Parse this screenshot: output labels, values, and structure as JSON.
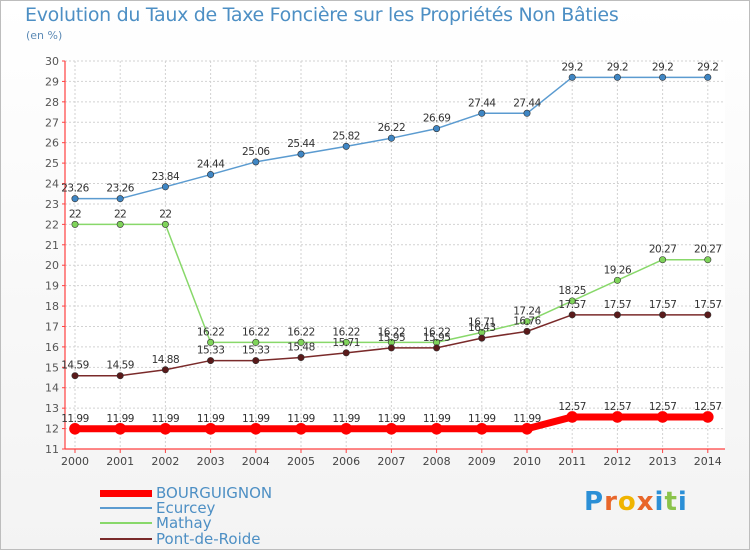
{
  "title": "Evolution du Taux de Taxe Foncière sur les Propriétés Non Bâties",
  "unit_label": "(en %)",
  "logo": {
    "text": "Proxiti",
    "letters": [
      "P",
      "r",
      "o",
      "x",
      "i",
      "t",
      "i"
    ],
    "colors": [
      "#2b8fd6",
      "#e8662a",
      "#f0b400",
      "#e8662a",
      "#2b8fd6",
      "#8bc34a",
      "#2b8fd6"
    ]
  },
  "chart_data": {
    "type": "line",
    "x": [
      "2000",
      "2001",
      "2002",
      "2003",
      "2004",
      "2005",
      "2006",
      "2007",
      "2008",
      "2009",
      "2010",
      "2011",
      "2012",
      "2013",
      "2014"
    ],
    "ylim": [
      11,
      30
    ],
    "yticks": [
      11,
      12,
      13,
      14,
      15,
      16,
      17,
      18,
      19,
      20,
      21,
      22,
      23,
      24,
      25,
      26,
      27,
      28,
      29,
      30
    ],
    "grid": true,
    "legend_position": "bottom-left",
    "series": [
      {
        "name": "BOURGUIGNON",
        "color": "#ff0000",
        "line_width": 7,
        "marker_color": "#ff0000",
        "values": [
          11.99,
          11.99,
          11.99,
          11.99,
          11.99,
          11.99,
          11.99,
          11.99,
          11.99,
          11.99,
          11.99,
          12.57,
          12.57,
          12.57,
          12.57
        ],
        "labels": [
          "11.99",
          "11.99",
          "11.99",
          "11.99",
          "11.99",
          "11.99",
          "11.99",
          "11.99",
          "11.99",
          "11.99",
          "11.99",
          "12.57",
          "12.57",
          "12.57",
          "12.57"
        ]
      },
      {
        "name": "Ecurcey",
        "color": "#5b9bd0",
        "line_width": 1.5,
        "marker_color": "#3f86c4",
        "values": [
          23.26,
          23.26,
          23.84,
          24.44,
          25.06,
          25.44,
          25.82,
          26.22,
          26.69,
          27.44,
          27.44,
          29.2,
          29.2,
          29.2,
          29.2
        ],
        "labels": [
          "23.26",
          "23.26",
          "23.84",
          "24.44",
          "25.06",
          "25.44",
          "25.82",
          "26.22",
          "26.69",
          "27.44",
          "27.44",
          "29.2",
          "29.2",
          "29.2",
          "29.2"
        ]
      },
      {
        "name": "Mathay",
        "color": "#88d86a",
        "line_width": 1.5,
        "marker_color": "#7fd35a",
        "values": [
          22,
          22,
          22,
          16.22,
          16.22,
          16.22,
          16.22,
          16.22,
          16.22,
          16.71,
          17.24,
          18.25,
          19.26,
          20.27,
          20.27
        ],
        "labels": [
          "22",
          "22",
          "22",
          "16.22",
          "16.22",
          "16.22",
          "16.22",
          "16.22",
          "16.22",
          "16.71",
          "17.24",
          "18.25",
          "19.26",
          "20.27",
          "20.27"
        ]
      },
      {
        "name": "Pont-de-Roide",
        "color": "#7a2a2a",
        "line_width": 1.5,
        "marker_color": "#5a1a1a",
        "values": [
          14.59,
          14.59,
          14.88,
          15.33,
          15.33,
          15.48,
          15.71,
          15.95,
          15.95,
          16.43,
          16.76,
          17.57,
          17.57,
          17.57,
          17.57
        ],
        "labels": [
          "14.59",
          "14.59",
          "14.88",
          "15.33",
          "15.33",
          "15.48",
          "15.71",
          "15.95",
          "15.95",
          "16.43",
          "16.76",
          "17.57",
          "17.57",
          "17.57",
          "17.57"
        ]
      }
    ]
  }
}
